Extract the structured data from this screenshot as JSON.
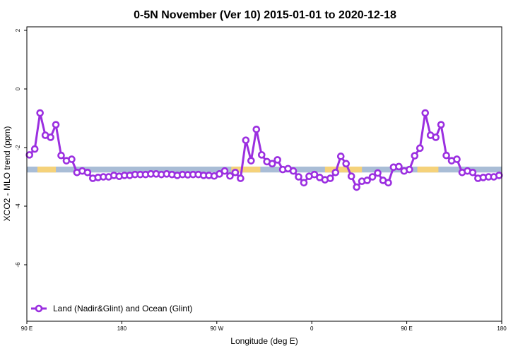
{
  "chart_data": {
    "type": "line",
    "title": "0-5N November (Ver 10)   2015-01-01 to 2020-12-18",
    "xlabel": "Longitude (deg E)",
    "ylabel": "XCO2 - MLO trend (ppm)",
    "xlim": [
      0,
      360
    ],
    "ylim": [
      -8,
      2
    ],
    "x_ticks": [
      {
        "value": 0,
        "label": "90 E"
      },
      {
        "value": 72,
        "label": "180"
      },
      {
        "value": 144,
        "label": "90 W"
      },
      {
        "value": 216,
        "label": "0"
      },
      {
        "value": 288,
        "label": "90 E"
      },
      {
        "value": 360,
        "label": "180"
      }
    ],
    "y_ticks": [
      {
        "value": 2,
        "label": "2"
      },
      {
        "value": 0,
        "label": "0"
      },
      {
        "value": -2,
        "label": "-2"
      },
      {
        "value": -4,
        "label": "-4"
      },
      {
        "value": -6,
        "label": "-6"
      }
    ],
    "band": {
      "y_top": -2.65,
      "y_bottom": -2.85,
      "ocean_color": "#a9bdd6",
      "land_color": "#f5d27a"
    },
    "land_segments": [
      [
        8,
        22
      ],
      [
        155,
        177
      ],
      [
        226,
        254
      ],
      [
        296,
        312
      ]
    ],
    "grid": false,
    "legend_position": "bottom-left",
    "series": [
      {
        "name": "Land (Nadir&Glint) and Ocean (Glint)",
        "color": "#9b2fe0",
        "x": [
          2,
          6,
          10,
          14,
          18,
          22,
          26,
          30,
          34,
          38,
          42,
          46,
          50,
          54,
          58,
          62,
          66,
          70,
          74,
          78,
          82,
          86,
          90,
          94,
          98,
          102,
          106,
          110,
          114,
          118,
          122,
          126,
          130,
          134,
          138,
          142,
          146,
          150,
          154,
          158,
          162,
          166,
          170,
          174,
          178,
          182,
          186,
          190,
          194,
          198,
          202,
          206,
          210,
          214,
          218,
          222,
          226,
          230,
          234,
          238,
          242,
          246,
          250,
          254,
          258,
          262,
          266,
          270,
          274,
          278,
          282,
          286,
          290,
          294,
          298,
          302,
          306,
          310,
          314,
          318,
          322,
          326,
          330,
          334,
          338,
          342,
          346,
          350,
          354,
          358
        ],
        "values": [
          -2.25,
          -2.05,
          -0.82,
          -1.58,
          -1.65,
          -1.22,
          -2.27,
          -2.45,
          -2.4,
          -2.85,
          -2.8,
          -2.85,
          -3.05,
          -3.02,
          -3.0,
          -3.0,
          -2.95,
          -2.98,
          -2.95,
          -2.95,
          -2.92,
          -2.92,
          -2.92,
          -2.9,
          -2.9,
          -2.92,
          -2.9,
          -2.92,
          -2.95,
          -2.92,
          -2.93,
          -2.92,
          -2.92,
          -2.95,
          -2.95,
          -2.97,
          -2.9,
          -2.8,
          -2.97,
          -2.85,
          -3.05,
          -1.75,
          -2.45,
          -1.38,
          -2.25,
          -2.48,
          -2.55,
          -2.42,
          -2.75,
          -2.72,
          -2.8,
          -3.0,
          -3.2,
          -2.98,
          -2.92,
          -3.02,
          -3.1,
          -3.05,
          -2.85,
          -2.3,
          -2.55,
          -2.98,
          -3.35,
          -3.15,
          -3.12,
          -3.0,
          -2.87,
          -3.12,
          -3.2,
          -2.67,
          -2.65,
          -2.8,
          -2.75,
          -2.28,
          -2.02,
          -0.82,
          -1.58,
          -1.65,
          -1.22,
          -2.27,
          -2.45,
          -2.4,
          -2.85,
          -2.8,
          -2.85,
          -3.05,
          -3.02,
          -3.0,
          -3.0,
          -2.95
        ]
      }
    ]
  }
}
